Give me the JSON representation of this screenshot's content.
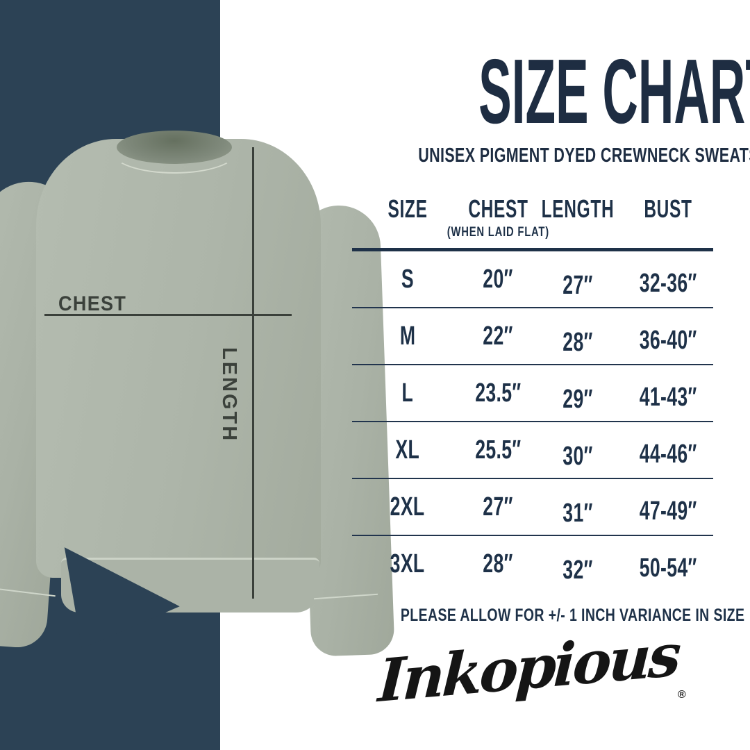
{
  "poster": {
    "title": "SIZE CHART",
    "subtitle": "UNISEX PIGMENT DYED CREWNECK SWEATSHIRT",
    "note": "PLEASE ALLOW FOR +/- 1 INCH VARIANCE IN SIZE",
    "brand": "Inkopious",
    "registered_mark": "®"
  },
  "measurement_labels": {
    "chest": "CHEST",
    "length": "LENGTH"
  },
  "size_table": {
    "columns": [
      "SIZE",
      "CHEST",
      "LENGTH",
      "BUST"
    ],
    "chest_subnote": "(WHEN LAID FLAT)",
    "rows": [
      {
        "size": "S",
        "chest": "20″",
        "length": "27″",
        "bust": "32-36″"
      },
      {
        "size": "M",
        "chest": "22″",
        "length": "28″",
        "bust": "36-40″"
      },
      {
        "size": "L",
        "chest": "23.5″",
        "length": "29″",
        "bust": "41-43″"
      },
      {
        "size": "XL",
        "chest": "25.5″",
        "length": "30″",
        "bust": "44-46″"
      },
      {
        "size": "2XL",
        "chest": "27″",
        "length": "31″",
        "bust": "47-49″"
      },
      {
        "size": "3XL",
        "chest": "28″",
        "length": "32″",
        "bust": "50-54″"
      }
    ]
  },
  "colors": {
    "navy_band": "#2c4255",
    "heading_navy": "#1e2d42",
    "table_navy": "#1e3148",
    "sweatshirt_sage": "#aeb5aa",
    "measure_label_charcoal": "#3b413b",
    "logo_black": "#151515",
    "background": "#ffffff"
  }
}
